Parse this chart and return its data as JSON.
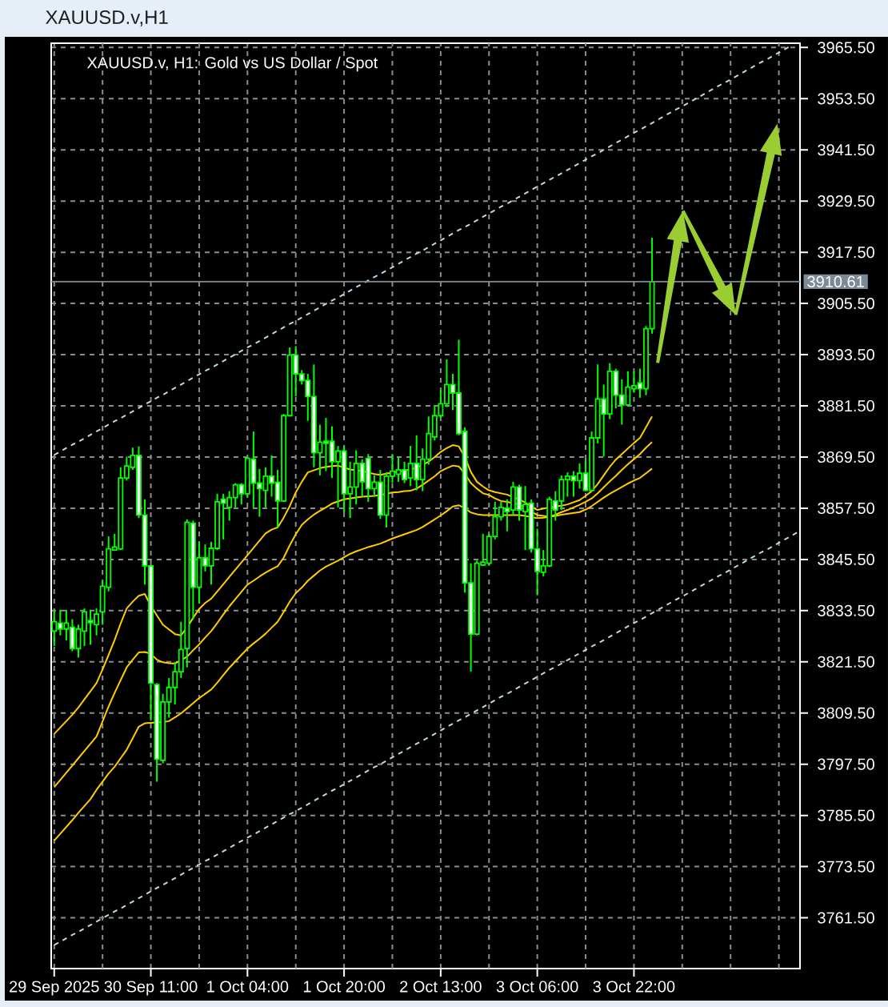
{
  "chart_data": {
    "type": "candlestick",
    "title": "XAUUSD.v,H1",
    "subtitle": "XAUUSD.v, H1: Gold vs US Dollar / Spot",
    "color": "#00ff00",
    "categories": [
      "29 Sep 2025",
      null,
      null,
      null,
      null,
      null,
      null,
      null,
      null,
      null,
      null,
      null,
      null,
      null,
      null,
      null,
      "30 Sep 11:00",
      null,
      null,
      null,
      null,
      null,
      null,
      null,
      null,
      null,
      null,
      null,
      null,
      null,
      null,
      null,
      "1 Oct 04:00",
      null,
      null,
      null,
      null,
      null,
      null,
      null,
      null,
      null,
      null,
      null,
      null,
      null,
      null,
      null,
      "1 Oct 20:00",
      null,
      null,
      null,
      null,
      null,
      null,
      null,
      null,
      null,
      null,
      null,
      null,
      null,
      null,
      null,
      "2 Oct 13:00",
      null,
      null,
      null,
      null,
      null,
      null,
      null,
      null,
      null,
      null,
      null,
      null,
      null,
      null,
      null,
      "3 Oct 06:00",
      null,
      null,
      null,
      null,
      null,
      null,
      null,
      null,
      null,
      null,
      null,
      null,
      null,
      null,
      null,
      "3 Oct 22:00",
      null,
      null,
      null,
      null,
      null,
      null,
      null,
      null,
      null,
      null,
      null,
      null,
      null,
      null,
      null,
      null,
      null,
      null,
      null,
      null,
      null,
      null,
      null,
      null,
      null,
      null,
      null
    ],
    "ohlc": [
      [
        3828.7,
        3833.4,
        3825.2,
        3830.9
      ],
      [
        3830.6,
        3833.7,
        3827.7,
        3829.2
      ],
      [
        3829.2,
        3833.7,
        3826.5,
        3830.6
      ],
      [
        3829.6,
        3831.5,
        3824.0,
        3824.6
      ],
      [
        3824.6,
        3830.2,
        3822.5,
        3829.2
      ],
      [
        3828.7,
        3834.0,
        3825.2,
        3833.2
      ],
      [
        3831.2,
        3833.7,
        3825.5,
        3830.7
      ],
      [
        3830.2,
        3834.0,
        3827.7,
        3832.7
      ],
      [
        3833.2,
        3840.5,
        3830.2,
        3839.2
      ],
      [
        3839.0,
        3850.9,
        3838.0,
        3848.0
      ],
      [
        3847.7,
        3851.5,
        3847.5,
        3848.4
      ],
      [
        3848.0,
        3867.1,
        3847.7,
        3864.6
      ],
      [
        3864.6,
        3869.6,
        3864.0,
        3867.4
      ],
      [
        3867.1,
        3871.7,
        3866.5,
        3869.9
      ],
      [
        3869.9,
        3872.0,
        3855.2,
        3855.9
      ],
      [
        3855.9,
        3859.6,
        3839.6,
        3844.0
      ],
      [
        3844.0,
        3844.2,
        3807.7,
        3816.5
      ],
      [
        3816.2,
        3816.5,
        3793.4,
        3798.7
      ],
      [
        3798.4,
        3814.0,
        3797.7,
        3812.1
      ],
      [
        3812.1,
        3817.7,
        3808.4,
        3815.5
      ],
      [
        3815.5,
        3821.5,
        3811.5,
        3819.2
      ],
      [
        3819.2,
        3830.9,
        3817.7,
        3824.4
      ],
      [
        3824.6,
        3854.9,
        3820.2,
        3854.2
      ],
      [
        3854.0,
        3854.6,
        3831.5,
        3839.0
      ],
      [
        3839.0,
        3849.5,
        3835.2,
        3845.9
      ],
      [
        3845.9,
        3849.0,
        3842.7,
        3844.0
      ],
      [
        3844.0,
        3849.6,
        3839.6,
        3848.1
      ],
      [
        3848.1,
        3860.9,
        3847.7,
        3859.0
      ],
      [
        3859.6,
        3860.9,
        3850.2,
        3858.7
      ],
      [
        3857.7,
        3861.5,
        3854.6,
        3860.0
      ],
      [
        3860.0,
        3863.4,
        3857.7,
        3863.0
      ],
      [
        3863.0,
        3863.4,
        3858.4,
        3860.9
      ],
      [
        3860.9,
        3869.6,
        3860.2,
        3869.2
      ],
      [
        3869.0,
        3875.5,
        3857.7,
        3863.4
      ],
      [
        3863.4,
        3866.7,
        3855.5,
        3862.1
      ],
      [
        3861.7,
        3867.1,
        3857.7,
        3865.0
      ],
      [
        3865.0,
        3869.9,
        3860.2,
        3863.4
      ],
      [
        3863.6,
        3866.5,
        3853.0,
        3859.2
      ],
      [
        3859.2,
        3879.6,
        3859.0,
        3879.2
      ],
      [
        3879.2,
        3895.2,
        3879.0,
        3893.4
      ],
      [
        3893.4,
        3895.5,
        3883.7,
        3889.0
      ],
      [
        3889.0,
        3889.9,
        3886.5,
        3887.4
      ],
      [
        3887.5,
        3889.0,
        3878.0,
        3883.7
      ],
      [
        3883.7,
        3891.2,
        3867.1,
        3870.5
      ],
      [
        3870.5,
        3877.1,
        3865.2,
        3873.0
      ],
      [
        3873.2,
        3878.7,
        3866.2,
        3872.7
      ],
      [
        3873.2,
        3876.7,
        3864.6,
        3868.4
      ],
      [
        3868.4,
        3872.1,
        3857.7,
        3870.9
      ],
      [
        3870.9,
        3872.0,
        3856.5,
        3860.9
      ],
      [
        3860.9,
        3868.4,
        3855.2,
        3862.5
      ],
      [
        3862.5,
        3871.1,
        3858.4,
        3868.0
      ],
      [
        3868.0,
        3869.0,
        3860.2,
        3863.7
      ],
      [
        3869.2,
        3870.2,
        3859.0,
        3862.1
      ],
      [
        3862.1,
        3865.2,
        3860.2,
        3863.6
      ],
      [
        3863.6,
        3866.5,
        3855.0,
        3855.9
      ],
      [
        3855.9,
        3865.9,
        3853.0,
        3865.0
      ],
      [
        3865.0,
        3870.2,
        3863.4,
        3866.2
      ],
      [
        3865.5,
        3869.6,
        3863.7,
        3866.5
      ],
      [
        3866.5,
        3868.4,
        3863.4,
        3864.2
      ],
      [
        3864.6,
        3872.1,
        3862.7,
        3868.0
      ],
      [
        3868.0,
        3874.6,
        3861.7,
        3864.2
      ],
      [
        3864.2,
        3871.5,
        3861.5,
        3869.0
      ],
      [
        3869.0,
        3879.0,
        3867.7,
        3875.0
      ],
      [
        3874.2,
        3881.7,
        3873.4,
        3879.2
      ],
      [
        3879.2,
        3885.2,
        3878.7,
        3882.0
      ],
      [
        3882.0,
        3892.4,
        3881.2,
        3886.5
      ],
      [
        3886.5,
        3889.0,
        3880.5,
        3884.5
      ],
      [
        3884.5,
        3897.0,
        3874.6,
        3875.0
      ],
      [
        3875.5,
        3876.5,
        3837.7,
        3840.0
      ],
      [
        3840.0,
        3844.6,
        3819.2,
        3828.0
      ],
      [
        3828.0,
        3845.2,
        3827.7,
        3844.6
      ],
      [
        3844.2,
        3851.5,
        3844.0,
        3844.9
      ],
      [
        3844.6,
        3851.5,
        3844.0,
        3850.9
      ],
      [
        3850.9,
        3859.0,
        3850.2,
        3855.5
      ],
      [
        3855.5,
        3859.0,
        3854.6,
        3857.7
      ],
      [
        3857.5,
        3859.6,
        3852.1,
        3856.7
      ],
      [
        3857.1,
        3863.7,
        3855.9,
        3862.5
      ],
      [
        3862.5,
        3863.0,
        3854.6,
        3857.1
      ],
      [
        3856.7,
        3862.7,
        3847.7,
        3858.4
      ],
      [
        3858.7,
        3859.6,
        3847.1,
        3848.0
      ],
      [
        3848.0,
        3852.7,
        3837.1,
        3842.7
      ],
      [
        3842.5,
        3847.7,
        3841.5,
        3844.0
      ],
      [
        3844.0,
        3860.2,
        3843.7,
        3859.6
      ],
      [
        3859.2,
        3861.5,
        3854.6,
        3857.1
      ],
      [
        3859.2,
        3865.2,
        3857.1,
        3864.2
      ],
      [
        3864.2,
        3865.9,
        3860.2,
        3865.0
      ],
      [
        3865.0,
        3866.2,
        3860.2,
        3864.0
      ],
      [
        3864.0,
        3868.0,
        3862.1,
        3865.7
      ],
      [
        3865.7,
        3869.0,
        3861.5,
        3861.7
      ],
      [
        3861.7,
        3875.5,
        3861.5,
        3874.0
      ],
      [
        3874.0,
        3891.2,
        3872.7,
        3883.1
      ],
      [
        3883.1,
        3886.5,
        3869.6,
        3879.6
      ],
      [
        3879.6,
        3891.5,
        3878.4,
        3889.6
      ],
      [
        3889.6,
        3890.2,
        3880.9,
        3884.0
      ],
      [
        3884.0,
        3887.7,
        3877.1,
        3881.7
      ],
      [
        3881.7,
        3889.6,
        3881.5,
        3885.9
      ],
      [
        3885.5,
        3889.6,
        3884.6,
        3886.2
      ],
      [
        3886.9,
        3890.2,
        3883.4,
        3885.5
      ],
      [
        3885.5,
        3900.2,
        3884.0,
        3899.6
      ],
      [
        3899.6,
        3920.9,
        3898.4,
        3910.61
      ],
      null,
      null,
      null,
      null,
      null,
      null,
      null,
      null,
      null,
      null,
      null,
      null,
      null,
      null,
      null,
      null,
      null,
      null,
      null,
      null,
      null,
      null,
      null,
      null
    ],
    "series": [
      {
        "type": "line",
        "color": "#c0d8e0",
        "line_style": "dashed",
        "values": [
          3870.0,
          3870.8,
          3871.6,
          3872.4,
          3873.1,
          3873.9,
          3874.7,
          3875.5,
          3876.3,
          3877.1,
          3877.9,
          3878.6,
          3879.4,
          3880.2,
          3881.0,
          3881.8,
          3882.6,
          3883.4,
          3884.1,
          3884.9,
          3885.7,
          3886.5,
          3887.3,
          3888.1,
          3888.9,
          3889.7,
          3890.4,
          3891.2,
          3892.0,
          3892.8,
          3893.6,
          3894.4,
          3895.2,
          3895.9,
          3896.7,
          3897.5,
          3898.3,
          3899.1,
          3899.9,
          3900.7,
          3901.4,
          3902.2,
          3903.0,
          3903.8,
          3904.6,
          3905.4,
          3906.2,
          3906.9,
          3907.7,
          3908.5,
          3909.3,
          3910.1,
          3910.9,
          3911.7,
          3912.4,
          3913.2,
          3914.0,
          3914.8,
          3915.6,
          3916.4,
          3917.2,
          3917.9,
          3918.7,
          3919.5,
          3920.3,
          3921.1,
          3921.9,
          3922.7,
          3923.4,
          3924.2,
          3925.0,
          3925.8,
          3926.6,
          3927.4,
          3928.2,
          3928.9,
          3929.7,
          3930.5,
          3931.3,
          3932.1,
          3932.9,
          3933.7,
          3934.5,
          3935.2,
          3936.0,
          3936.8,
          3937.6,
          3938.4,
          3939.2,
          3940.0,
          3940.7,
          3941.5,
          3942.3,
          3943.1,
          3943.9,
          3944.7,
          3945.5,
          3946.2,
          3947.0,
          3947.8,
          3948.6,
          3949.4,
          3950.2,
          3951.0,
          3951.7,
          3952.5,
          3953.3,
          3954.1,
          3954.9,
          3955.7,
          3956.5,
          3957.2,
          3958.0,
          3958.8,
          3959.6,
          3960.4,
          3961.2,
          3962.0,
          3962.7,
          3963.5,
          3964.3,
          3965.1,
          3965.9,
          null
        ]
      },
      {
        "type": "line",
        "color": "#c0d8e0",
        "line_style": "dashed",
        "values": [
          3755.1,
          3755.9,
          3756.7,
          3757.5,
          3758.2,
          3759.0,
          3759.8,
          3760.6,
          3761.4,
          3762.2,
          3763.0,
          3763.7,
          3764.5,
          3765.3,
          3766.1,
          3766.9,
          3767.7,
          3768.5,
          3769.2,
          3770.0,
          3770.8,
          3771.6,
          3772.4,
          3773.2,
          3774.0,
          3774.8,
          3775.5,
          3776.3,
          3777.1,
          3777.9,
          3778.7,
          3779.5,
          3780.3,
          3781.0,
          3781.8,
          3782.6,
          3783.4,
          3784.2,
          3785.0,
          3785.8,
          3786.5,
          3787.3,
          3788.1,
          3788.9,
          3789.7,
          3790.5,
          3791.3,
          3792.0,
          3792.8,
          3793.6,
          3794.4,
          3795.2,
          3796.0,
          3796.8,
          3797.5,
          3798.3,
          3799.1,
          3799.9,
          3800.7,
          3801.5,
          3802.3,
          3803.0,
          3803.8,
          3804.6,
          3805.4,
          3806.2,
          3807.0,
          3807.8,
          3808.5,
          3809.3,
          3810.1,
          3810.9,
          3811.7,
          3812.5,
          3813.3,
          3814.0,
          3814.8,
          3815.6,
          3816.4,
          3817.2,
          3818.0,
          3818.8,
          3819.6,
          3820.3,
          3821.1,
          3821.9,
          3822.7,
          3823.5,
          3824.3,
          3825.1,
          3825.8,
          3826.6,
          3827.4,
          3828.2,
          3829.0,
          3829.8,
          3830.6,
          3831.3,
          3832.1,
          3832.9,
          3833.7,
          3834.5,
          3835.3,
          3836.1,
          3836.8,
          3837.6,
          3838.4,
          3839.2,
          3840.0,
          3840.8,
          3841.6,
          3842.3,
          3843.1,
          3843.9,
          3844.7,
          3845.5,
          3846.3,
          3847.1,
          3847.8,
          3848.6,
          3849.4,
          3850.2,
          3851.0,
          3851.8
        ]
      },
      {
        "type": "line",
        "color": "#ffcc00",
        "values": [
          3804.6,
          3806.1,
          3807.6,
          3809.1,
          3810.8,
          3812.7,
          3814.6,
          3816.5,
          3819.7,
          3823.1,
          3826.6,
          3830.5,
          3834.0,
          3835.6,
          3837.0,
          3837.4,
          3834.6,
          3832.4,
          3830.2,
          3829.1,
          3828.0,
          3827.7,
          3829.6,
          3831.8,
          3833.9,
          3835.3,
          3836.3,
          3838.0,
          3839.7,
          3841.4,
          3843.1,
          3844.8,
          3846.5,
          3848.2,
          3849.9,
          3851.6,
          3852.5,
          3853.0,
          3855.3,
          3858.0,
          3861.2,
          3863.7,
          3865.9,
          3866.4,
          3866.9,
          3867.2,
          3867.4,
          3867.5,
          3867.0,
          3866.6,
          3866.4,
          3866.2,
          3865.9,
          3865.5,
          3865.3,
          3865.6,
          3865.9,
          3866.1,
          3866.3,
          3866.6,
          3867.0,
          3867.7,
          3868.4,
          3869.5,
          3870.7,
          3871.6,
          3872.3,
          3872.0,
          3869.5,
          3866.0,
          3863.7,
          3862.6,
          3861.7,
          3861.3,
          3861.0,
          3860.7,
          3860.1,
          3859.6,
          3858.8,
          3858.0,
          3857.1,
          3857.4,
          3857.7,
          3857.9,
          3858.1,
          3858.4,
          3858.9,
          3859.4,
          3860.4,
          3861.5,
          3863.2,
          3865.2,
          3867.2,
          3868.9,
          3870.2,
          3871.5,
          3872.8,
          3874.0,
          3876.5,
          3879.0,
          null,
          null,
          null,
          null,
          null,
          null,
          null,
          null,
          null,
          null,
          null,
          null,
          null,
          null,
          null,
          null,
          null,
          null,
          null,
          null,
          null,
          null,
          null,
          null
        ]
      },
      {
        "type": "line",
        "color": "#ffcc00",
        "values": [
          3792.1,
          3793.8,
          3795.5,
          3797.2,
          3798.9,
          3800.6,
          3802.3,
          3804.0,
          3807.5,
          3811.0,
          3814.2,
          3817.2,
          3820.2,
          3822.0,
          3823.7,
          3823.8,
          3823.4,
          3822.0,
          3821.4,
          3821.2,
          3821.1,
          3821.9,
          3822.7,
          3824.2,
          3825.6,
          3827.2,
          3828.7,
          3830.6,
          3832.6,
          3834.5,
          3836.2,
          3837.9,
          3839.6,
          3840.5,
          3841.5,
          3842.4,
          3843.2,
          3843.9,
          3845.9,
          3848.8,
          3851.4,
          3853.6,
          3854.9,
          3856.0,
          3856.9,
          3857.7,
          3858.6,
          3859.1,
          3859.6,
          3859.8,
          3860.0,
          3860.2,
          3860.3,
          3860.4,
          3860.6,
          3860.9,
          3861.2,
          3861.3,
          3861.5,
          3861.6,
          3862.1,
          3863.0,
          3864.0,
          3865.0,
          3866.2,
          3866.9,
          3867.5,
          3867.3,
          3865.6,
          3863.4,
          3862.1,
          3861.0,
          3860.6,
          3859.8,
          3859.2,
          3859.0,
          3858.7,
          3858.4,
          3857.6,
          3856.7,
          3855.9,
          3855.7,
          3855.5,
          3856.0,
          3856.6,
          3857.1,
          3857.7,
          3858.3,
          3859.0,
          3859.8,
          3861.0,
          3862.4,
          3863.8,
          3865.1,
          3866.5,
          3867.8,
          3869.0,
          3870.2,
          3871.7,
          3873.0,
          null,
          null,
          null,
          null,
          null,
          null,
          null,
          null,
          null,
          null,
          null,
          null,
          null,
          null,
          null,
          null,
          null,
          null,
          null,
          null,
          null,
          null,
          null,
          null
        ]
      },
      {
        "type": "line",
        "color": "#ffcc00",
        "values": [
          3779.6,
          3781.2,
          3782.8,
          3784.4,
          3786.1,
          3787.7,
          3789.3,
          3791.5,
          3793.4,
          3795.3,
          3796.9,
          3798.9,
          3800.9,
          3803.6,
          3806.3,
          3807.1,
          3807.2,
          3807.3,
          3807.4,
          3807.6,
          3808.5,
          3809.4,
          3810.6,
          3811.8,
          3813.0,
          3814.0,
          3815.0,
          3816.6,
          3818.4,
          3820.1,
          3821.6,
          3823.1,
          3824.6,
          3825.8,
          3826.9,
          3828.1,
          3829.5,
          3830.9,
          3833.2,
          3835.6,
          3837.6,
          3838.9,
          3840.5,
          3841.7,
          3842.9,
          3843.8,
          3844.5,
          3845.2,
          3846.0,
          3846.8,
          3847.4,
          3847.9,
          3848.4,
          3848.8,
          3849.2,
          3849.8,
          3850.4,
          3850.9,
          3851.4,
          3851.9,
          3852.4,
          3853.1,
          3854.0,
          3854.9,
          3855.8,
          3856.8,
          3857.9,
          3858.2,
          3857.5,
          3856.5,
          3856.1,
          3855.9,
          3855.9,
          3855.9,
          3855.9,
          3855.9,
          3855.9,
          3855.9,
          3855.7,
          3855.4,
          3855.2,
          3855.3,
          3855.5,
          3855.7,
          3856.0,
          3856.2,
          3856.4,
          3856.6,
          3857.2,
          3858.0,
          3859.0,
          3860.0,
          3860.9,
          3861.7,
          3862.5,
          3863.3,
          3864.0,
          3864.6,
          3865.7,
          3866.8,
          null,
          null,
          null,
          null,
          null,
          null,
          null,
          null,
          null,
          null,
          null,
          null,
          null,
          null,
          null,
          null,
          null,
          null,
          null,
          null,
          null,
          null,
          null,
          null
        ]
      }
    ],
    "ylim": [
      3749.6,
      3966.5
    ],
    "yticks": [
      {
        "value": 3761.5,
        "label": "3761.50"
      },
      {
        "value": 3773.5,
        "label": "3773.50"
      },
      {
        "value": 3785.5,
        "label": "3785.50"
      },
      {
        "value": 3797.5,
        "label": "3797.50"
      },
      {
        "value": 3809.5,
        "label": "3809.50"
      },
      {
        "value": 3821.5,
        "label": "3821.50"
      },
      {
        "value": 3833.5,
        "label": "3833.50"
      },
      {
        "value": 3845.5,
        "label": "3845.50"
      },
      {
        "value": 3857.5,
        "label": "3857.50"
      },
      {
        "value": 3869.5,
        "label": "3869.50"
      },
      {
        "value": 3881.5,
        "label": "3881.50"
      },
      {
        "value": 3893.5,
        "label": "3893.50"
      },
      {
        "value": 3905.5,
        "label": "3905.50"
      },
      {
        "value": 3917.5,
        "label": "3917.50"
      },
      {
        "value": 3929.5,
        "label": "3929.50"
      },
      {
        "value": 3941.5,
        "label": "3941.50"
      },
      {
        "value": 3953.5,
        "label": "3953.50"
      },
      {
        "value": 3965.5,
        "label": "3965.50"
      }
    ],
    "ref_lines": [
      {
        "axis": "y",
        "value": 3910.61,
        "label": "3910.61",
        "color": "#7a8a96"
      }
    ],
    "grid": true
  }
}
